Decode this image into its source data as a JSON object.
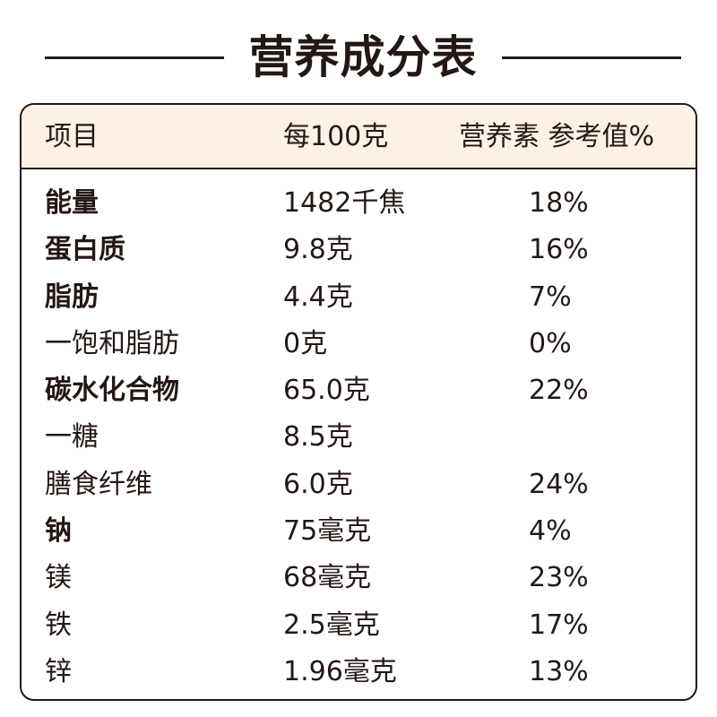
{
  "title": "营养成分表",
  "header": {
    "item": "项目",
    "per100": "每100克",
    "nrv": "营养素 参考值%"
  },
  "rows": [
    {
      "name": "能量",
      "amount": "1482千焦",
      "nrv": "18%",
      "bold": true
    },
    {
      "name": "蛋白质",
      "amount": "9.8克",
      "nrv": "16%",
      "bold": true
    },
    {
      "name": "脂肪",
      "amount": "4.4克",
      "nrv": "7%",
      "bold": true
    },
    {
      "name": "一饱和脂肪",
      "amount": "0克",
      "nrv": "0%",
      "bold": false
    },
    {
      "name": "碳水化合物",
      "amount": "65.0克",
      "nrv": "22%",
      "bold": true
    },
    {
      "name": "一糖",
      "amount": "8.5克",
      "nrv": "",
      "bold": false
    },
    {
      "name": "膳食纤维",
      "amount": "6.0克",
      "nrv": "24%",
      "bold": false
    },
    {
      "name": "钠",
      "amount": "75毫克",
      "nrv": "4%",
      "bold": true
    },
    {
      "name": "镁",
      "amount": "68毫克",
      "nrv": "23%",
      "bold": false
    },
    {
      "name": "铁",
      "amount": "2.5毫克",
      "nrv": "17%",
      "bold": false
    },
    {
      "name": "锌",
      "amount": "1.96毫克",
      "nrv": "13%",
      "bold": false
    }
  ]
}
